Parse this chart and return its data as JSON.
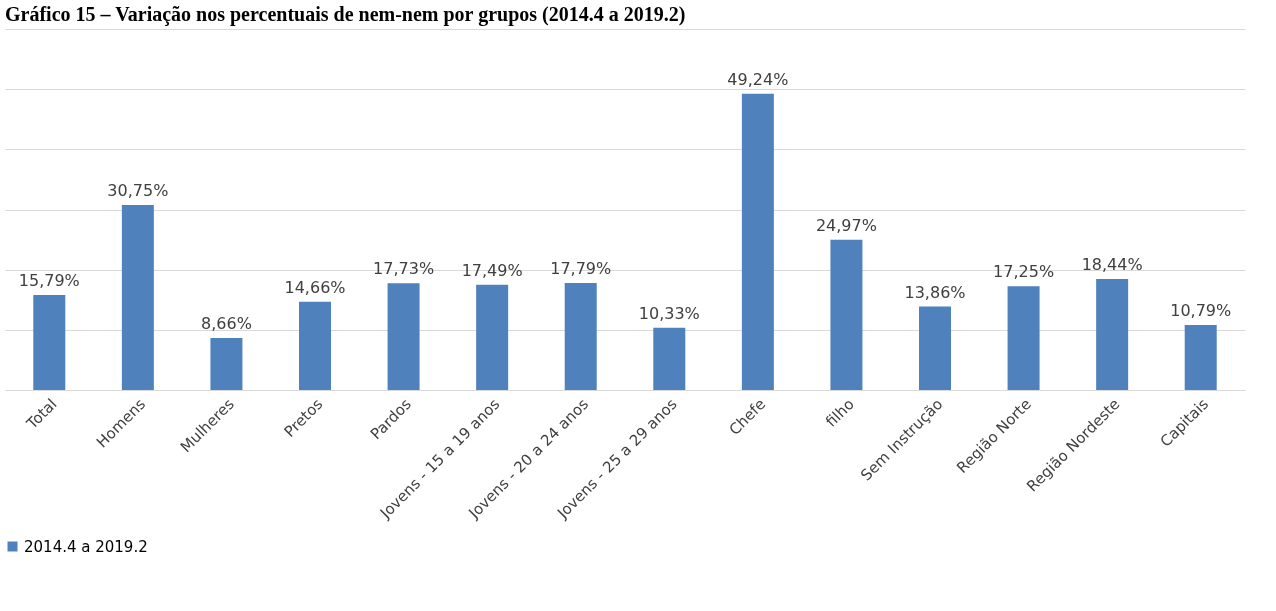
{
  "chart_data": {
    "type": "bar",
    "title": "Gráfico 15 – Variação nos percentuais de nem-nem por grupos (2014.4 a 2019.2)",
    "categories": [
      "Total",
      "Homens",
      "Mulheres",
      "Pretos",
      "Pardos",
      "Jovens - 15 a 19 anos",
      "Jovens - 20 a 24 anos",
      "Jovens - 25 a 29 anos",
      "Chefe",
      "filho",
      "Sem Instrução",
      "Região Norte",
      "Região Nordeste",
      "Capitais"
    ],
    "series": [
      {
        "name": "2014.4 a 2019.2",
        "color": "#4f81bd",
        "values": [
          15.79,
          30.75,
          8.66,
          14.66,
          17.73,
          17.49,
          17.79,
          10.33,
          49.24,
          24.97,
          13.86,
          17.25,
          18.44,
          10.79
        ],
        "value_labels": [
          "15,79%",
          "30,75%",
          "8,66%",
          "14,66%",
          "17,73%",
          "17,49%",
          "17,79%",
          "10,33%",
          "49,24%",
          "24,97%",
          "13,86%",
          "17,25%",
          "18,44%",
          "10,79%"
        ]
      }
    ],
    "ylim": [
      0,
      60
    ],
    "yticks": [
      {
        "value": 0,
        "label": null
      },
      {
        "value": 10,
        "label": null
      },
      {
        "value": 20,
        "label": null
      },
      {
        "value": 30,
        "label": null
      },
      {
        "value": 40,
        "label": null
      },
      {
        "value": 50,
        "label": null
      },
      {
        "value": 60,
        "label": null
      }
    ],
    "grid": "y",
    "legend": "bottom",
    "tick_labels": "x"
  }
}
